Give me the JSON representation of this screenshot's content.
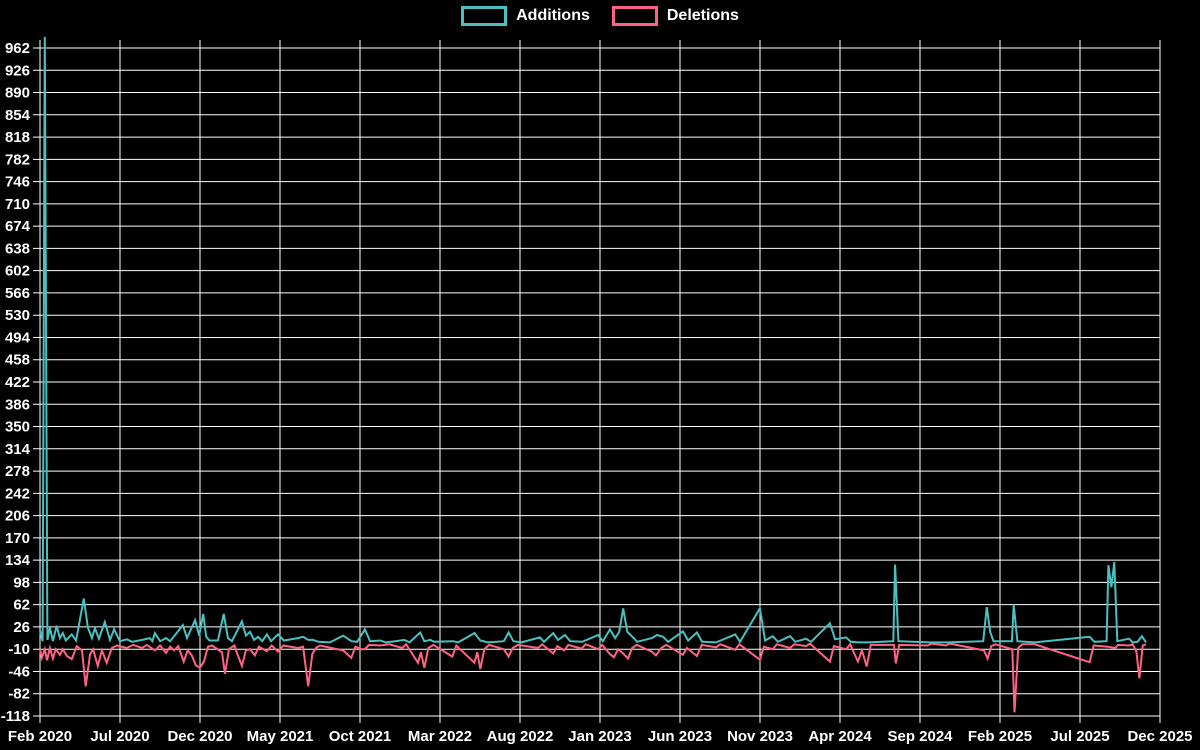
{
  "legend": {
    "items": [
      {
        "label": "Additions",
        "color": "#4bc0c0"
      },
      {
        "label": "Deletions",
        "color": "#ff6384"
      }
    ]
  },
  "colors": {
    "background": "#000000",
    "grid": "#ffffff",
    "text": "#ffffff",
    "additions": "#4bc0c0",
    "deletions": "#ff6384"
  },
  "chart_data": {
    "type": "line",
    "title": "",
    "xlabel": "",
    "ylabel": "",
    "grid": true,
    "legend_position": "top-center",
    "x_axis": {
      "unit": "weeks since Feb 2020",
      "total_weeks": 304,
      "tick_labels": [
        "Feb 2020",
        "Jul 2020",
        "Dec 2020",
        "May 2021",
        "Oct 2021",
        "Mar 2022",
        "Aug 2022",
        "Jan 2023",
        "Jun 2023",
        "Nov 2023",
        "Apr 2024",
        "Sep 2024",
        "Feb 2025",
        "Jul 2025",
        "Dec 2025"
      ]
    },
    "y_axis": {
      "min": -118,
      "max": 962,
      "step": 36
    },
    "series": [
      {
        "name": "Additions",
        "color": "#4bc0c0",
        "points": [
          [
            0,
            20
          ],
          [
            0.7,
            3
          ],
          [
            1.3,
            980
          ],
          [
            2,
            5
          ],
          [
            2.7,
            25
          ],
          [
            3.5,
            3
          ],
          [
            4.5,
            28
          ],
          [
            5.4,
            8
          ],
          [
            6.2,
            16
          ],
          [
            7,
            4
          ],
          [
            8.6,
            14
          ],
          [
            9.8,
            4
          ],
          [
            11.9,
            72
          ],
          [
            13,
            25
          ],
          [
            14.1,
            8
          ],
          [
            14.9,
            24
          ],
          [
            16,
            7
          ],
          [
            17.6,
            34
          ],
          [
            19,
            5
          ],
          [
            20.1,
            22
          ],
          [
            21.7,
            3
          ],
          [
            23.6,
            6
          ],
          [
            25,
            2
          ],
          [
            27.7,
            5
          ],
          [
            29.8,
            8
          ],
          [
            30.5,
            3
          ],
          [
            31.2,
            16
          ],
          [
            32.6,
            3
          ],
          [
            34.2,
            8
          ],
          [
            35.3,
            3
          ],
          [
            38.8,
            29
          ],
          [
            39.9,
            8
          ],
          [
            42.1,
            37
          ],
          [
            43.2,
            12
          ],
          [
            44.3,
            47
          ],
          [
            45.1,
            10
          ],
          [
            46,
            4
          ],
          [
            48.3,
            4
          ],
          [
            49.9,
            47
          ],
          [
            51,
            8
          ],
          [
            52.1,
            3
          ],
          [
            54.8,
            35
          ],
          [
            55.9,
            12
          ],
          [
            57,
            18
          ],
          [
            58.1,
            5
          ],
          [
            59.2,
            10
          ],
          [
            60.3,
            3
          ],
          [
            61.6,
            14
          ],
          [
            62.7,
            3
          ],
          [
            64.6,
            14
          ],
          [
            66.2,
            4
          ],
          [
            70,
            8
          ],
          [
            71.4,
            10
          ],
          [
            72.8,
            5
          ],
          [
            74.1,
            5
          ],
          [
            75.5,
            2
          ],
          [
            78.7,
            1
          ],
          [
            82.3,
            12
          ],
          [
            84.5,
            3
          ],
          [
            86.1,
            2
          ],
          [
            88.2,
            22
          ],
          [
            89.6,
            3
          ],
          [
            92.3,
            4
          ],
          [
            93.9,
            1
          ],
          [
            96.4,
            3
          ],
          [
            98.9,
            5
          ],
          [
            100.3,
            1
          ],
          [
            103.2,
            17
          ],
          [
            104.3,
            3
          ],
          [
            105.9,
            5
          ],
          [
            107,
            2
          ],
          [
            112.1,
            3
          ],
          [
            113.5,
            1
          ],
          [
            117.9,
            16
          ],
          [
            119.5,
            4
          ],
          [
            121.6,
            1
          ],
          [
            125.9,
            3
          ],
          [
            127.2,
            17
          ],
          [
            128.5,
            3
          ],
          [
            130.7,
            1
          ],
          [
            135.7,
            9
          ],
          [
            136.8,
            2
          ],
          [
            139.3,
            16
          ],
          [
            140.6,
            5
          ],
          [
            142.5,
            13
          ],
          [
            143.9,
            3
          ],
          [
            147.2,
            2
          ],
          [
            151.5,
            13
          ],
          [
            152.8,
            3
          ],
          [
            154.7,
            22
          ],
          [
            156.1,
            8
          ],
          [
            157.2,
            18
          ],
          [
            158.3,
            56
          ],
          [
            159.4,
            18
          ],
          [
            160.8,
            10
          ],
          [
            162.1,
            2
          ],
          [
            166.1,
            8
          ],
          [
            167.5,
            13
          ],
          [
            169.1,
            10
          ],
          [
            170.5,
            2
          ],
          [
            174.5,
            19
          ],
          [
            175.9,
            4
          ],
          [
            178.3,
            17
          ],
          [
            179.7,
            2
          ],
          [
            183.5,
            1
          ],
          [
            188.7,
            14
          ],
          [
            190,
            2
          ],
          [
            195.4,
            56
          ],
          [
            196.8,
            4
          ],
          [
            198.9,
            11
          ],
          [
            200.3,
            2
          ],
          [
            203.6,
            11
          ],
          [
            205,
            2
          ],
          [
            207.9,
            7
          ],
          [
            209.3,
            2
          ],
          [
            214.4,
            32
          ],
          [
            215.8,
            6
          ],
          [
            218.8,
            9
          ],
          [
            220.1,
            2
          ],
          [
            222,
            1
          ],
          [
            225,
            1
          ],
          [
            231.6,
            3
          ],
          [
            232.1,
            127
          ],
          [
            233,
            3
          ],
          [
            241.5,
            1
          ],
          [
            246.5,
            1
          ],
          [
            256,
            3
          ],
          [
            257,
            58
          ],
          [
            257.9,
            18
          ],
          [
            258.8,
            3
          ],
          [
            263.8,
            3
          ],
          [
            264.3,
            62
          ],
          [
            265.3,
            3
          ],
          [
            270,
            1
          ],
          [
            284.9,
            10
          ],
          [
            286.2,
            2
          ],
          [
            289.5,
            3
          ],
          [
            290,
            126
          ],
          [
            290.8,
            90
          ],
          [
            291.6,
            131
          ],
          [
            292.4,
            3
          ],
          [
            295.6,
            7
          ],
          [
            296.6,
            1
          ],
          [
            297.9,
            2
          ],
          [
            299.1,
            11
          ],
          [
            300.2,
            1
          ]
        ]
      },
      {
        "name": "Deletions",
        "color": "#ff6384",
        "points": [
          [
            0,
            -10
          ],
          [
            0.5,
            -24
          ],
          [
            1.3,
            -10
          ],
          [
            1.9,
            -28
          ],
          [
            2.7,
            -8
          ],
          [
            3.5,
            -25
          ],
          [
            4.3,
            -10
          ],
          [
            5.4,
            -19
          ],
          [
            6.2,
            -10
          ],
          [
            7.3,
            -21
          ],
          [
            8.6,
            -26
          ],
          [
            10,
            -5
          ],
          [
            11.4,
            -12
          ],
          [
            12.4,
            -70
          ],
          [
            13.6,
            -18
          ],
          [
            14.4,
            -10
          ],
          [
            15.7,
            -37
          ],
          [
            16.8,
            -12
          ],
          [
            18.1,
            -32
          ],
          [
            19.5,
            -8
          ],
          [
            20.9,
            -4
          ],
          [
            23.6,
            -8
          ],
          [
            25.3,
            -3
          ],
          [
            27.7,
            -8
          ],
          [
            29,
            -3
          ],
          [
            31.2,
            -12
          ],
          [
            32.6,
            -4
          ],
          [
            34.2,
            -16
          ],
          [
            35.3,
            -6
          ],
          [
            36.4,
            -12
          ],
          [
            37.5,
            -5
          ],
          [
            39,
            -30
          ],
          [
            40.1,
            -12
          ],
          [
            41.2,
            -20
          ],
          [
            42.3,
            -36
          ],
          [
            43.4,
            -40
          ],
          [
            44.5,
            -30
          ],
          [
            45.6,
            -6
          ],
          [
            46.7,
            -4
          ],
          [
            49.4,
            -15
          ],
          [
            50.2,
            -50
          ],
          [
            51.3,
            -10
          ],
          [
            52.7,
            -4
          ],
          [
            54.8,
            -37
          ],
          [
            55.9,
            -12
          ],
          [
            57,
            -10
          ],
          [
            58.3,
            -20
          ],
          [
            59.4,
            -6
          ],
          [
            61.6,
            -13
          ],
          [
            62.9,
            -4
          ],
          [
            64.6,
            -14
          ],
          [
            66,
            -4
          ],
          [
            70,
            -8
          ],
          [
            71.4,
            -6
          ],
          [
            72.8,
            -70
          ],
          [
            73.9,
            -18
          ],
          [
            74.9,
            -8
          ],
          [
            76,
            -4
          ],
          [
            82.3,
            -12
          ],
          [
            84.5,
            -24
          ],
          [
            85.6,
            -6
          ],
          [
            87.2,
            -10
          ],
          [
            88.2,
            -10
          ],
          [
            89.3,
            -3
          ],
          [
            92.3,
            -4
          ],
          [
            94.8,
            -2
          ],
          [
            98.3,
            -8
          ],
          [
            99.4,
            -2
          ],
          [
            102.6,
            -32
          ],
          [
            103.4,
            -15
          ],
          [
            104.3,
            -40
          ],
          [
            105.4,
            -8
          ],
          [
            106.8,
            -3
          ],
          [
            111.9,
            -22
          ],
          [
            113,
            -4
          ],
          [
            117.9,
            -32
          ],
          [
            118.7,
            -15
          ],
          [
            119.5,
            -42
          ],
          [
            120.6,
            -10
          ],
          [
            121.9,
            -3
          ],
          [
            125.9,
            -10
          ],
          [
            127.2,
            -22
          ],
          [
            128.3,
            -8
          ],
          [
            129.7,
            -3
          ],
          [
            135.2,
            -8
          ],
          [
            136.3,
            -2
          ],
          [
            139.3,
            -17
          ],
          [
            140.4,
            -5
          ],
          [
            142.3,
            -12
          ],
          [
            143.4,
            -3
          ],
          [
            147,
            -9
          ],
          [
            148.1,
            -2
          ],
          [
            151.5,
            -10
          ],
          [
            152.6,
            -3
          ],
          [
            154.7,
            -18
          ],
          [
            155.8,
            -23
          ],
          [
            156.9,
            -10
          ],
          [
            158.3,
            -17
          ],
          [
            159.6,
            -25
          ],
          [
            160.7,
            -8
          ],
          [
            162,
            -3
          ],
          [
            166.1,
            -14
          ],
          [
            167.2,
            -20
          ],
          [
            168.6,
            -8
          ],
          [
            170,
            -3
          ],
          [
            174.5,
            -19
          ],
          [
            175.6,
            -8
          ],
          [
            178.3,
            -21
          ],
          [
            179.6,
            -3
          ],
          [
            183.5,
            -7
          ],
          [
            184.6,
            -2
          ],
          [
            188.7,
            -11
          ],
          [
            189.8,
            -2
          ],
          [
            195.4,
            -27
          ],
          [
            196.5,
            -6
          ],
          [
            198.9,
            -10
          ],
          [
            200,
            -2
          ],
          [
            203.6,
            -8
          ],
          [
            204.7,
            -2
          ],
          [
            207.9,
            -5
          ],
          [
            209,
            -1
          ],
          [
            214.4,
            -30
          ],
          [
            215.5,
            -5
          ],
          [
            218.8,
            -10
          ],
          [
            219.9,
            -2
          ],
          [
            222,
            -30
          ],
          [
            223.1,
            -12
          ],
          [
            224.4,
            -38
          ],
          [
            225.5,
            -3
          ],
          [
            231.8,
            -3
          ],
          [
            232.3,
            -33
          ],
          [
            233.2,
            -3
          ],
          [
            240.9,
            -4
          ],
          [
            242,
            -1
          ],
          [
            245.9,
            -4
          ],
          [
            247,
            -1
          ],
          [
            256.2,
            -12
          ],
          [
            257.2,
            -25
          ],
          [
            258.2,
            -5
          ],
          [
            259.3,
            -2
          ],
          [
            263.9,
            -10
          ],
          [
            264.5,
            -112
          ],
          [
            265.5,
            -8
          ],
          [
            266.6,
            -2
          ],
          [
            270,
            -2
          ],
          [
            284.9,
            -31
          ],
          [
            286,
            -4
          ],
          [
            289.8,
            -6
          ],
          [
            291.8,
            -8
          ],
          [
            292.6,
            -3
          ],
          [
            295.6,
            -4
          ],
          [
            296.6,
            -2
          ],
          [
            297.6,
            -14
          ],
          [
            298.4,
            -57
          ],
          [
            299.3,
            -4
          ],
          [
            300.2,
            -2
          ]
        ]
      }
    ]
  }
}
